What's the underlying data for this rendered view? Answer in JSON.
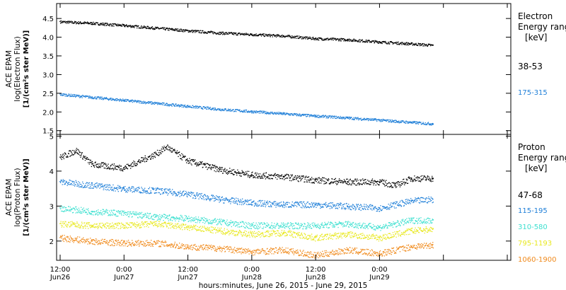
{
  "chart_data": [
    {
      "type": "scatter",
      "ylabel": [
        "ACE EPAM",
        "log(Electron Flux)",
        "[1/(cm²s ster MeV)]"
      ],
      "ylim": [
        1.4,
        4.9
      ],
      "yticks": [
        "1.5",
        "2.0",
        "2.5",
        "3.0",
        "3.5",
        "4.0",
        "4.5"
      ],
      "legend_title": [
        "Electron",
        "Energy range",
        "[keV]"
      ],
      "series": [
        {
          "name": "38-53",
          "color": "#000000",
          "x": [
            0,
            6,
            12,
            18,
            24,
            30,
            36,
            42,
            48,
            54,
            60,
            66,
            70
          ],
          "y": [
            4.42,
            4.38,
            4.32,
            4.25,
            4.18,
            4.12,
            4.08,
            4.04,
            3.97,
            3.94,
            3.88,
            3.83,
            3.79
          ]
        },
        {
          "name": "175-315",
          "color": "#1f7fd8",
          "x": [
            0,
            6,
            12,
            18,
            24,
            30,
            36,
            42,
            48,
            54,
            60,
            66,
            70
          ],
          "y": [
            2.48,
            2.4,
            2.32,
            2.24,
            2.16,
            2.08,
            2.02,
            1.96,
            1.9,
            1.85,
            1.79,
            1.73,
            1.69
          ]
        }
      ]
    },
    {
      "type": "scatter",
      "ylabel": [
        "ACE EPAM",
        "log(Proton Flux)",
        "[1/(cm²s ster MeV)]"
      ],
      "ylim": [
        1.45,
        5.05
      ],
      "yticks": [
        "2",
        "3",
        "4",
        "5"
      ],
      "legend_title": [
        "Proton",
        "Energy range",
        "[keV]"
      ],
      "series": [
        {
          "name": "47-68",
          "color": "#000000",
          "x": [
            0,
            3,
            6,
            12,
            18,
            20,
            24,
            30,
            36,
            42,
            48,
            54,
            60,
            63,
            66,
            70
          ],
          "y": [
            4.4,
            4.6,
            4.2,
            4.1,
            4.5,
            4.7,
            4.3,
            4.05,
            3.9,
            3.85,
            3.75,
            3.7,
            3.7,
            3.6,
            3.8,
            3.8
          ]
        },
        {
          "name": "115-195",
          "color": "#1f7fd8",
          "x": [
            0,
            6,
            12,
            18,
            24,
            30,
            36,
            42,
            48,
            54,
            60,
            66,
            70
          ],
          "y": [
            3.7,
            3.6,
            3.5,
            3.45,
            3.35,
            3.2,
            3.1,
            3.05,
            3.05,
            3.0,
            2.95,
            3.15,
            3.2
          ]
        },
        {
          "name": "310-580",
          "color": "#3ee0d0",
          "x": [
            0,
            6,
            12,
            18,
            24,
            30,
            36,
            42,
            48,
            54,
            60,
            66,
            70
          ],
          "y": [
            2.95,
            2.85,
            2.8,
            2.7,
            2.65,
            2.55,
            2.45,
            2.45,
            2.45,
            2.5,
            2.4,
            2.6,
            2.6
          ]
        },
        {
          "name": "795-1193",
          "color": "#e8e820",
          "x": [
            0,
            6,
            12,
            18,
            24,
            30,
            36,
            42,
            48,
            54,
            60,
            66,
            70
          ],
          "y": [
            2.5,
            2.45,
            2.45,
            2.5,
            2.4,
            2.3,
            2.2,
            2.25,
            2.1,
            2.2,
            2.1,
            2.3,
            2.35
          ]
        },
        {
          "name": "1060-1900",
          "color": "#f08a1c",
          "x": [
            0,
            6,
            12,
            18,
            24,
            30,
            36,
            42,
            48,
            54,
            60,
            66,
            70
          ],
          "y": [
            2.1,
            2.0,
            1.95,
            1.95,
            1.85,
            1.8,
            1.7,
            1.75,
            1.6,
            1.75,
            1.65,
            1.85,
            1.9
          ]
        }
      ]
    }
  ],
  "xaxis": {
    "hours": [
      0,
      12,
      24,
      36,
      48,
      60,
      72,
      84
    ],
    "tick_labels": [
      {
        "h": 0,
        "time": "12:00",
        "day": "Jun26"
      },
      {
        "h": 12,
        "time": "0:00",
        "day": "Jun27"
      },
      {
        "h": 24,
        "time": "12:00",
        "day": "Jun27"
      },
      {
        "h": 36,
        "time": "0:00",
        "day": "Jun28"
      },
      {
        "h": 48,
        "time": "12:00",
        "day": "Jun28"
      },
      {
        "h": 60,
        "time": "0:00",
        "day": "Jun29"
      }
    ],
    "xlim": [
      0,
      84
    ],
    "xlabel": "hours:minutes, June 26, 2015 - June 29, 2015"
  }
}
